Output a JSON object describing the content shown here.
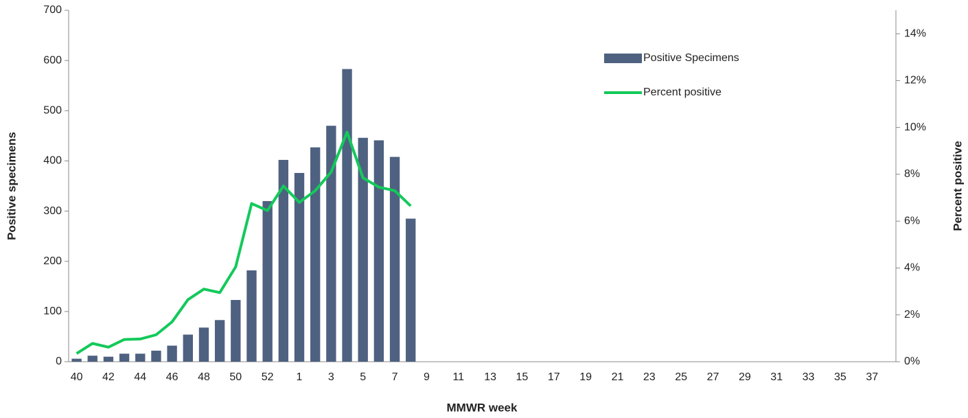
{
  "chart_data": {
    "type": "bar-line",
    "x_label": "MMWR week",
    "y_label": "Positive specimens",
    "y2_label": "Percent positive",
    "categories": [
      40,
      null,
      42,
      null,
      44,
      null,
      46,
      null,
      48,
      null,
      50,
      null,
      52,
      null,
      1,
      null,
      3,
      null,
      5,
      null,
      7,
      null,
      9,
      null,
      11,
      null,
      13,
      null,
      15,
      null,
      17,
      null,
      19,
      null,
      21,
      null,
      23,
      null,
      25,
      null,
      27,
      null,
      29,
      null,
      31,
      null,
      33,
      null,
      35,
      null,
      37,
      null
    ],
    "series": [
      {
        "name": "Positive Specimens",
        "type": "bar",
        "color": "#4e6180",
        "values": [
          6,
          12,
          10,
          16,
          16,
          22,
          32,
          54,
          68,
          83,
          123,
          182,
          320,
          402,
          376,
          427,
          470,
          583,
          446,
          441,
          408,
          285,
          null,
          null,
          null,
          null,
          null,
          null,
          null,
          null,
          null,
          null,
          null,
          null,
          null,
          null,
          null,
          null,
          null,
          null,
          null,
          null,
          null,
          null,
          null,
          null,
          null,
          null,
          null,
          null,
          null,
          null
        ]
      },
      {
        "name": "Percent positive",
        "type": "line",
        "axis": "y2",
        "color": "#13c95a",
        "values": [
          0.35,
          0.78,
          0.62,
          0.95,
          0.97,
          1.15,
          1.7,
          2.65,
          3.1,
          2.95,
          4.05,
          6.75,
          6.45,
          7.5,
          6.8,
          7.3,
          8.1,
          9.8,
          7.85,
          7.45,
          7.3,
          6.65,
          null,
          null,
          null,
          null,
          null,
          null,
          null,
          null,
          null,
          null,
          null,
          null,
          null,
          null,
          null,
          null,
          null,
          null,
          null,
          null,
          null,
          null,
          null,
          null,
          null,
          null,
          null,
          null,
          null,
          null
        ]
      }
    ],
    "ylim": [
      0,
      700
    ],
    "yticks": [
      0,
      100,
      200,
      300,
      400,
      500,
      600,
      700
    ],
    "y2lim": [
      0,
      15
    ],
    "y2ticks": [
      {
        "value": 0,
        "label": "0%"
      },
      {
        "value": 2,
        "label": "2%"
      },
      {
        "value": 4,
        "label": "4%"
      },
      {
        "value": 6,
        "label": "6%"
      },
      {
        "value": 8,
        "label": "8%"
      },
      {
        "value": 10,
        "label": "10%"
      },
      {
        "value": 12,
        "label": "12%"
      },
      {
        "value": 14,
        "label": "14%"
      }
    ],
    "grid": false,
    "legend": "top-right"
  }
}
